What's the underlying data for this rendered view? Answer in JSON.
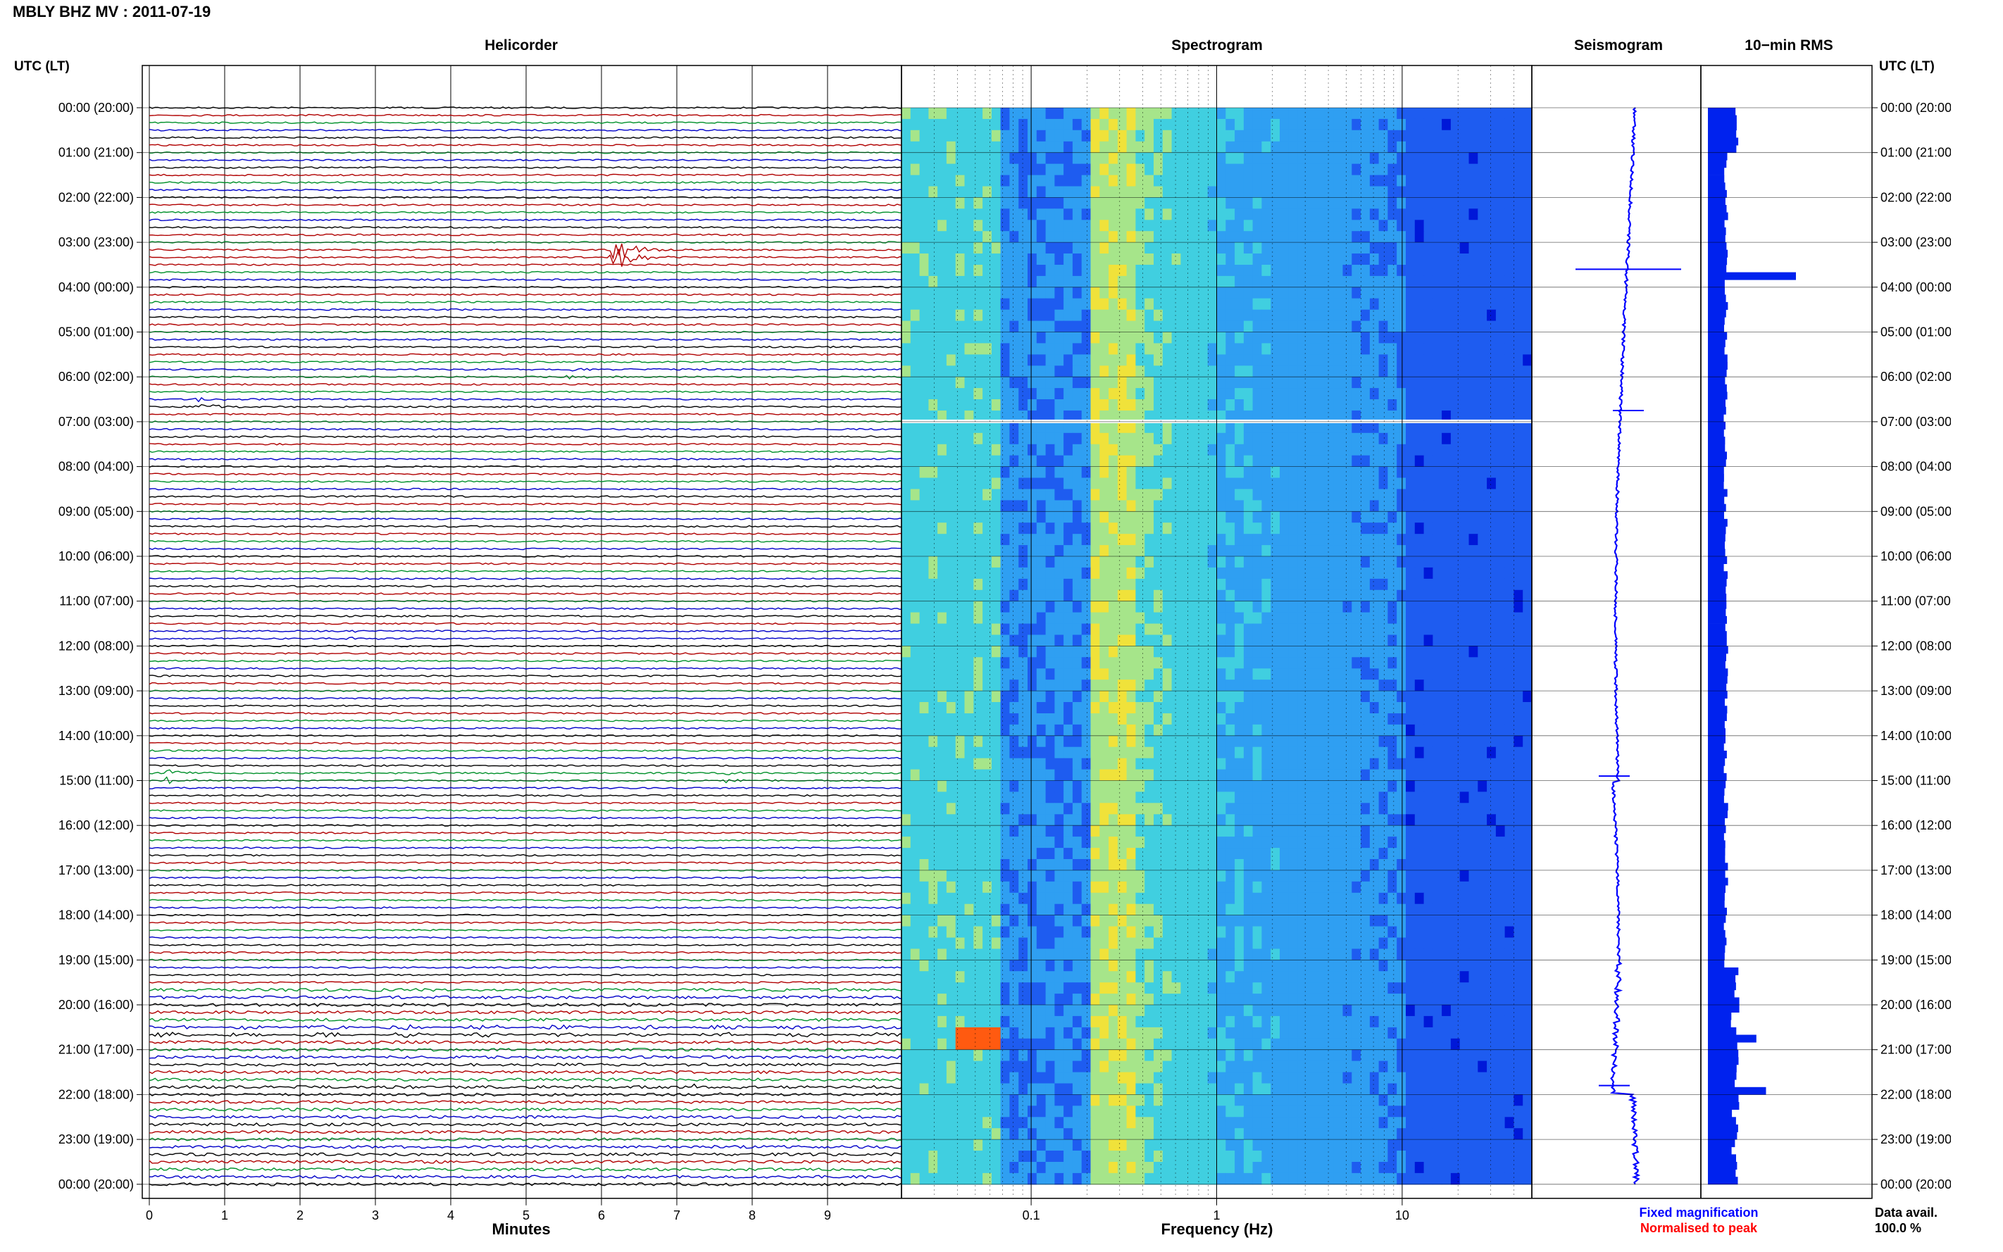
{
  "chart_data": {
    "type": "heatmap",
    "title": "MBLY BHZ MV : 2011-07-19",
    "left_time_label": "UTC (LT)",
    "right_time_label": "UTC (LT)",
    "hour_labels": [
      "00:00 (20:00)",
      "01:00 (21:00)",
      "02:00 (22:00)",
      "03:00 (23:00)",
      "04:00 (00:00)",
      "05:00 (01:00)",
      "06:00 (02:00)",
      "07:00 (03:00)",
      "08:00 (04:00)",
      "09:00 (05:00)",
      "10:00 (06:00)",
      "11:00 (07:00)",
      "12:00 (08:00)",
      "13:00 (09:00)",
      "14:00 (10:00)",
      "15:00 (11:00)",
      "16:00 (12:00)",
      "17:00 (13:00)",
      "18:00 (14:00)",
      "19:00 (15:00)",
      "20:00 (16:00)",
      "21:00 (17:00)",
      "22:00 (18:00)",
      "23:00 (19:00)",
      "00:00 (20:00)"
    ],
    "panels": {
      "helicorder": {
        "title": "Helicorder",
        "xlabel": "Minutes",
        "x_ticks": [
          "0",
          "1",
          "2",
          "3",
          "4",
          "5",
          "6",
          "7",
          "8",
          "9"
        ],
        "xlim": [
          0,
          10
        ],
        "trace_colors": [
          "#000000",
          "#b00000",
          "#00902a",
          "#0000c8"
        ],
        "events": [
          {
            "hour": 3.25,
            "minute": 6.1,
            "amplitude": 1.0,
            "color": "#b00000"
          },
          {
            "hour": 5.95,
            "minute": 5.5,
            "amplitude": 0.12,
            "color": "#00902a"
          },
          {
            "hour": 6.6,
            "minute": 0.6,
            "amplitude": 0.18,
            "color": "#000000"
          },
          {
            "hour": 11.75,
            "minute": 2.6,
            "amplitude": 0.1,
            "color": "#0000c8"
          },
          {
            "hour": 14.9,
            "minute": 0.2,
            "amplitude": 0.18,
            "color": "#00902a"
          },
          {
            "hour": 14.9,
            "minute": 7.6,
            "amplitude": 0.2,
            "color": "#0000c8"
          },
          {
            "hour": 21.9,
            "minute": 7.2,
            "amplitude": 0.22,
            "color": "#000000"
          }
        ]
      },
      "spectrogram": {
        "title": "Spectrogram",
        "xlabel": "Frequency (Hz)",
        "x_scale": "log",
        "xlim": [
          0.02,
          50
        ],
        "x_ticks": [
          "0.1",
          "1",
          "10"
        ],
        "colormap": [
          "#0018d8",
          "#1e5cf0",
          "#2f9ff2",
          "#40cfe0",
          "#a6e58a",
          "#f0e23a",
          "#ff5a10"
        ]
      },
      "seismogram": {
        "title": "Seismogram",
        "note": "Fixed magnification",
        "note_color": "#0000ff",
        "spikes_hours": [
          3.6,
          6.75,
          14.9,
          21.8
        ]
      },
      "rms": {
        "title": "10−min RMS",
        "note": "Normalised to peak",
        "note_color": "#ff0000",
        "peaks": [
          {
            "hour": 3.6,
            "value": 1.0
          },
          {
            "hour": 20.6,
            "value": 0.55
          },
          {
            "hour": 21.8,
            "value": 0.66
          }
        ],
        "bar_color": "#0022ee"
      }
    },
    "data_availability": {
      "label": "Data avail.",
      "value": "100.0 %"
    }
  }
}
